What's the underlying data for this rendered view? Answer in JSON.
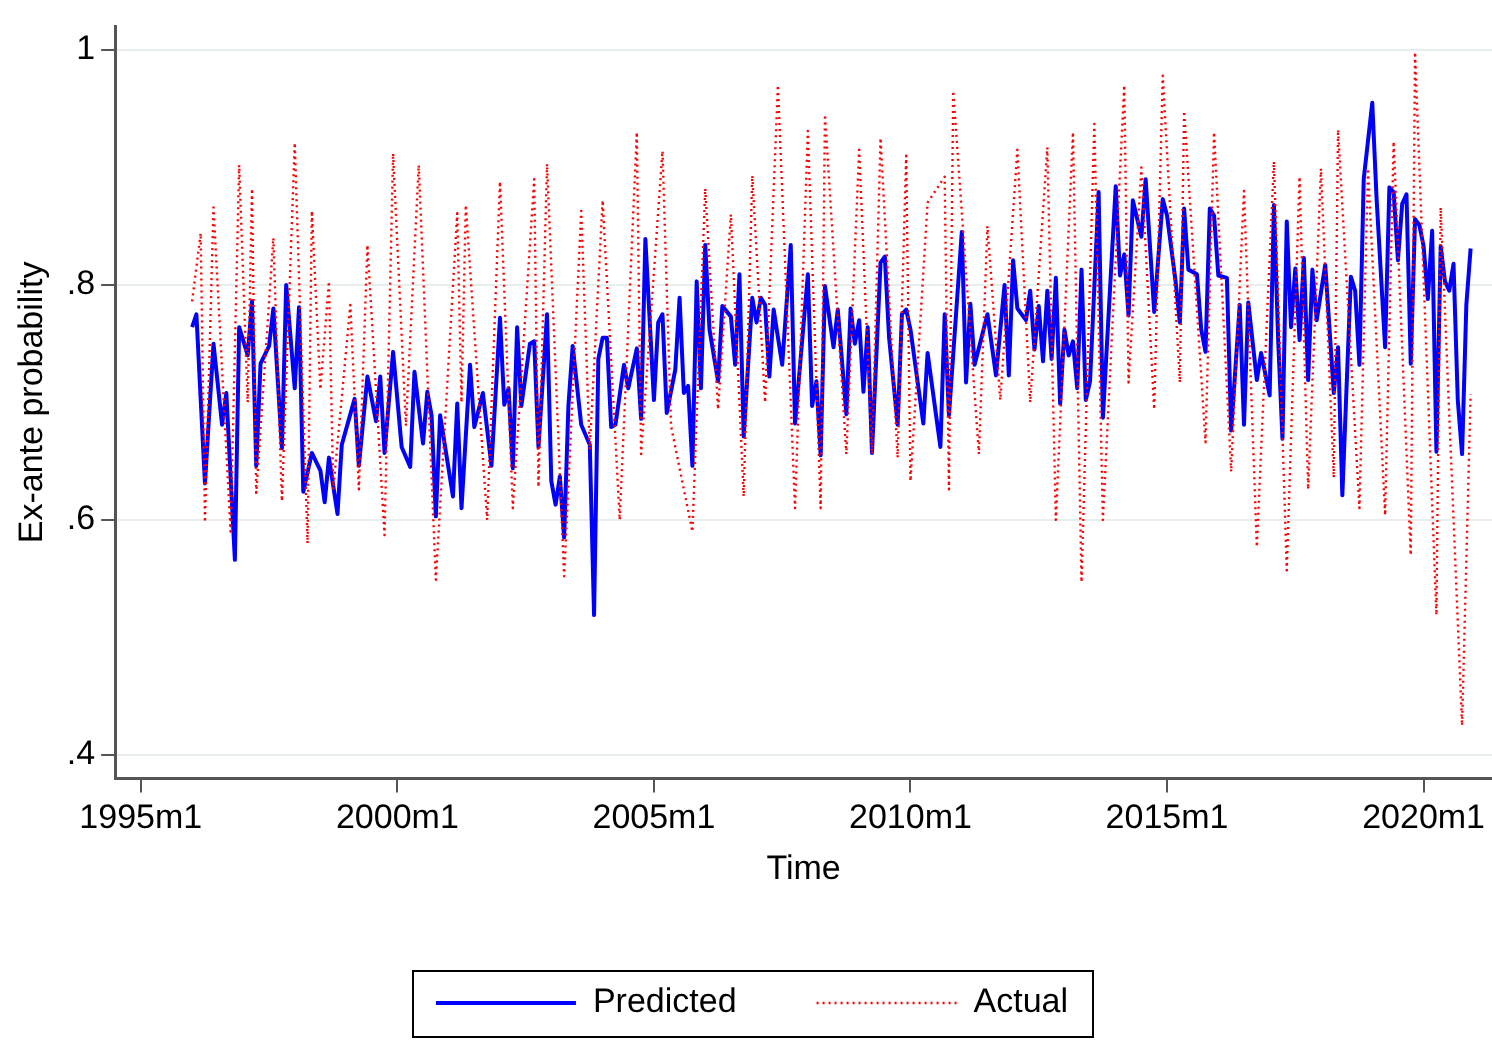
{
  "chart_data": {
    "type": "line",
    "xlabel": "Time",
    "ylabel": "Ex-ante probability",
    "xlim": [
      "1994-07",
      "2021-05"
    ],
    "ylim": [
      0.38,
      1.02
    ],
    "xticks": [
      {
        "value": "1995-01",
        "label": "1995m1"
      },
      {
        "value": "2000-01",
        "label": "2000m1"
      },
      {
        "value": "2005-01",
        "label": "2005m1"
      },
      {
        "value": "2010-01",
        "label": "2010m1"
      },
      {
        "value": "2015-01",
        "label": "2015m1"
      },
      {
        "value": "2020-01",
        "label": "2020m1"
      }
    ],
    "yticks": [
      {
        "value": 0.4,
        "label": ".4"
      },
      {
        "value": 0.6,
        "label": ".6"
      },
      {
        "value": 0.8,
        "label": ".8"
      },
      {
        "value": 1,
        "label": "1"
      }
    ],
    "grid": "y",
    "legend": "bottom",
    "series": [
      {
        "name": "Predicted",
        "color": "#0000ff",
        "line_style": "solid",
        "x": [
          "1996-01",
          "1996-02",
          "1996-04",
          "1996-06",
          "1996-08",
          "1996-09",
          "1996-11",
          "1996-12",
          "1997-02",
          "1997-03",
          "1997-04",
          "1997-05",
          "1997-07",
          "1997-08",
          "1997-10",
          "1997-11",
          "1998-01",
          "1998-02",
          "1998-03",
          "1998-05",
          "1998-07",
          "1998-08",
          "1998-09",
          "1998-11",
          "1998-12",
          "1999-03",
          "1999-04",
          "1999-06",
          "1999-08",
          "1999-09",
          "1999-10",
          "1999-12",
          "2000-02",
          "2000-04",
          "2000-05",
          "2000-07",
          "2000-08",
          "2000-09",
          "2000-10",
          "2000-11",
          "2001-02",
          "2001-03",
          "2001-04",
          "2001-06",
          "2001-07",
          "2001-09",
          "2001-11",
          "2002-01",
          "2002-02",
          "2002-03",
          "2002-04",
          "2002-05",
          "2002-06",
          "2002-08",
          "2002-09",
          "2002-10",
          "2002-12",
          "2003-01",
          "2003-02",
          "2003-03",
          "2003-04",
          "2003-05",
          "2003-06",
          "2003-08",
          "2003-10",
          "2003-11",
          "2003-12",
          "2004-01",
          "2004-02",
          "2004-03",
          "2004-04",
          "2004-06",
          "2004-07",
          "2004-09",
          "2004-10",
          "2004-11",
          "2005-01",
          "2005-02",
          "2005-03",
          "2005-04",
          "2005-06",
          "2005-07",
          "2005-08",
          "2005-09",
          "2005-10",
          "2005-11",
          "2005-12",
          "2006-01",
          "2006-02",
          "2006-04",
          "2006-05",
          "2006-07",
          "2006-08",
          "2006-09",
          "2006-10",
          "2006-12",
          "2007-01",
          "2007-02",
          "2007-03",
          "2007-04",
          "2007-05",
          "2007-07",
          "2007-09",
          "2007-10",
          "2008-01",
          "2008-02",
          "2008-03",
          "2008-04",
          "2008-05",
          "2008-07",
          "2008-08",
          "2008-10",
          "2008-11",
          "2008-12",
          "2009-01",
          "2009-02",
          "2009-03",
          "2009-04",
          "2009-06",
          "2009-07",
          "2009-08",
          "2009-10",
          "2009-11",
          "2009-12",
          "2010-01",
          "2010-04",
          "2010-05",
          "2010-08",
          "2010-09",
          "2010-10",
          "2011-01",
          "2011-02",
          "2011-03",
          "2011-04",
          "2011-07",
          "2011-09",
          "2011-11",
          "2011-12",
          "2012-01",
          "2012-02",
          "2012-04",
          "2012-05",
          "2012-06",
          "2012-07",
          "2012-08",
          "2012-09",
          "2012-10",
          "2012-11",
          "2012-12",
          "2013-01",
          "2013-02",
          "2013-03",
          "2013-04",
          "2013-05",
          "2013-06",
          "2013-07",
          "2013-09",
          "2013-10",
          "2014-01",
          "2014-02",
          "2014-03",
          "2014-04",
          "2014-05",
          "2014-07",
          "2014-08",
          "2014-10",
          "2014-12",
          "2015-01",
          "2015-03",
          "2015-04",
          "2015-05",
          "2015-06",
          "2015-08",
          "2015-09",
          "2015-10",
          "2015-11",
          "2015-12",
          "2016-01",
          "2016-03",
          "2016-04",
          "2016-06",
          "2016-07",
          "2016-08",
          "2016-10",
          "2016-11",
          "2017-01",
          "2017-02",
          "2017-03",
          "2017-04",
          "2017-05",
          "2017-06",
          "2017-07",
          "2017-08",
          "2017-09",
          "2017-10",
          "2017-11",
          "2017-12",
          "2018-02",
          "2018-04",
          "2018-05",
          "2018-06",
          "2018-08",
          "2018-09",
          "2018-10",
          "2018-11",
          "2019-01",
          "2019-02",
          "2019-04",
          "2019-05",
          "2019-06",
          "2019-07",
          "2019-08",
          "2019-09",
          "2019-10",
          "2019-11",
          "2019-12",
          "2020-01",
          "2020-02",
          "2020-03",
          "2020-04",
          "2020-05",
          "2020-06",
          "2020-07",
          "2020-08",
          "2020-09",
          "2020-10",
          "2020-11",
          "2020-12"
        ],
        "values": [
          0.764,
          0.775,
          0.631,
          0.75,
          0.681,
          0.708,
          0.566,
          0.764,
          0.74,
          0.786,
          0.646,
          0.733,
          0.748,
          0.78,
          0.661,
          0.8,
          0.712,
          0.781,
          0.624,
          0.657,
          0.642,
          0.615,
          0.653,
          0.605,
          0.664,
          0.703,
          0.646,
          0.722,
          0.684,
          0.722,
          0.657,
          0.743,
          0.662,
          0.645,
          0.726,
          0.665,
          0.709,
          0.689,
          0.603,
          0.689,
          0.62,
          0.699,
          0.61,
          0.732,
          0.679,
          0.708,
          0.646,
          0.772,
          0.698,
          0.712,
          0.644,
          0.764,
          0.697,
          0.75,
          0.752,
          0.662,
          0.775,
          0.633,
          0.613,
          0.637,
          0.585,
          0.697,
          0.748,
          0.681,
          0.664,
          0.519,
          0.737,
          0.755,
          0.755,
          0.679,
          0.681,
          0.732,
          0.712,
          0.746,
          0.686,
          0.839,
          0.702,
          0.768,
          0.775,
          0.691,
          0.728,
          0.789,
          0.708,
          0.714,
          0.646,
          0.803,
          0.712,
          0.834,
          0.762,
          0.718,
          0.782,
          0.773,
          0.732,
          0.809,
          0.671,
          0.789,
          0.768,
          0.789,
          0.783,
          0.722,
          0.779,
          0.732,
          0.834,
          0.682,
          0.809,
          0.697,
          0.718,
          0.655,
          0.799,
          0.747,
          0.779,
          0.69,
          0.78,
          0.75,
          0.77,
          0.709,
          0.764,
          0.657,
          0.819,
          0.824,
          0.755,
          0.681,
          0.775,
          0.779,
          0.762,
          0.682,
          0.742,
          0.662,
          0.775,
          0.689,
          0.845,
          0.717,
          0.784,
          0.732,
          0.775,
          0.723,
          0.8,
          0.723,
          0.821,
          0.78,
          0.77,
          0.795,
          0.745,
          0.782,
          0.735,
          0.795,
          0.737,
          0.806,
          0.699,
          0.762,
          0.74,
          0.752,
          0.712,
          0.813,
          0.702,
          0.718,
          0.879,
          0.687,
          0.884,
          0.808,
          0.826,
          0.774,
          0.872,
          0.841,
          0.89,
          0.777,
          0.873,
          0.859,
          0.803,
          0.768,
          0.865,
          0.813,
          0.809,
          0.762,
          0.743,
          0.865,
          0.859,
          0.808,
          0.806,
          0.676,
          0.783,
          0.681,
          0.785,
          0.719,
          0.742,
          0.706,
          0.868,
          0.752,
          0.669,
          0.854,
          0.764,
          0.814,
          0.753,
          0.823,
          0.719,
          0.813,
          0.77,
          0.817,
          0.708,
          0.747,
          0.621,
          0.807,
          0.795,
          0.732,
          0.89,
          0.955,
          0.874,
          0.747,
          0.883,
          0.879,
          0.821,
          0.869,
          0.877,
          0.733,
          0.856,
          0.851,
          0.833,
          0.788,
          0.846,
          0.658,
          0.833,
          0.803,
          0.795,
          0.818,
          0.702,
          0.656,
          0.783,
          0.831
        ]
      },
      {
        "name": "Actual",
        "color": "#ff0000",
        "line_style": "dotted",
        "x": [
          "1996-01",
          "1996-03",
          "1996-04",
          "1996-06",
          "1996-10",
          "1996-12",
          "1997-02",
          "1997-03",
          "1997-04",
          "1997-08",
          "1997-10",
          "1998-01",
          "1998-04",
          "1998-05",
          "1998-07",
          "1998-09",
          "1998-10",
          "1999-02",
          "1999-04",
          "1999-06",
          "1999-10",
          "1999-12",
          "2000-03",
          "2000-06",
          "2000-10",
          "2001-03",
          "2001-04",
          "2001-05",
          "2001-10",
          "2002-01",
          "2002-04",
          "2002-09",
          "2002-10",
          "2002-12",
          "2003-04",
          "2003-08",
          "2003-10",
          "2004-01",
          "2004-05",
          "2004-09",
          "2004-10",
          "2005-03",
          "2005-05",
          "2005-10",
          "2006-01",
          "2006-04",
          "2006-07",
          "2006-10",
          "2006-12",
          "2007-03",
          "2007-06",
          "2007-10",
          "2008-01",
          "2008-04",
          "2008-05",
          "2008-10",
          "2009-01",
          "2009-04",
          "2009-06",
          "2009-10",
          "2009-12",
          "2010-01",
          "2010-05",
          "2010-09",
          "2010-10",
          "2010-11",
          "2011-05",
          "2011-07",
          "2011-10",
          "2012-02",
          "2012-05",
          "2012-09",
          "2012-11",
          "2013-03",
          "2013-05",
          "2013-08",
          "2013-10",
          "2014-03",
          "2014-04",
          "2014-07",
          "2014-10",
          "2014-12",
          "2015-04",
          "2015-05",
          "2015-10",
          "2015-12",
          "2016-04",
          "2016-07",
          "2016-10",
          "2017-02",
          "2017-05",
          "2017-08",
          "2017-10",
          "2018-01",
          "2018-04",
          "2018-05",
          "2018-10",
          "2018-12",
          "2019-04",
          "2019-06",
          "2019-10",
          "2019-11",
          "2020-04",
          "2020-05",
          "2020-10",
          "2020-12"
        ],
        "values": [
          0.786,
          0.844,
          0.598,
          0.866,
          0.59,
          0.902,
          0.7,
          0.882,
          0.623,
          0.84,
          0.616,
          0.921,
          0.58,
          0.863,
          0.711,
          0.803,
          0.626,
          0.783,
          0.626,
          0.834,
          0.587,
          0.912,
          0.68,
          0.902,
          0.549,
          0.861,
          0.7,
          0.868,
          0.6,
          0.888,
          0.61,
          0.89,
          0.628,
          0.903,
          0.552,
          0.863,
          0.66,
          0.872,
          0.6,
          0.93,
          0.656,
          0.914,
          0.68,
          0.59,
          0.882,
          0.694,
          0.86,
          0.62,
          0.893,
          0.7,
          0.97,
          0.61,
          0.931,
          0.61,
          0.945,
          0.656,
          0.915,
          0.656,
          0.925,
          0.653,
          0.91,
          0.633,
          0.87,
          0.892,
          0.626,
          0.965,
          0.656,
          0.85,
          0.702,
          0.915,
          0.7,
          0.917,
          0.6,
          0.93,
          0.547,
          0.937,
          0.6,
          0.97,
          0.717,
          0.9,
          0.694,
          0.978,
          0.717,
          0.948,
          0.666,
          0.93,
          0.641,
          0.88,
          0.577,
          0.905,
          0.557,
          0.892,
          0.626,
          0.899,
          0.636,
          0.932,
          0.61,
          0.899,
          0.604,
          0.922,
          0.57,
          0.998,
          0.519,
          0.866,
          0.425,
          0.707
        ]
      }
    ]
  }
}
